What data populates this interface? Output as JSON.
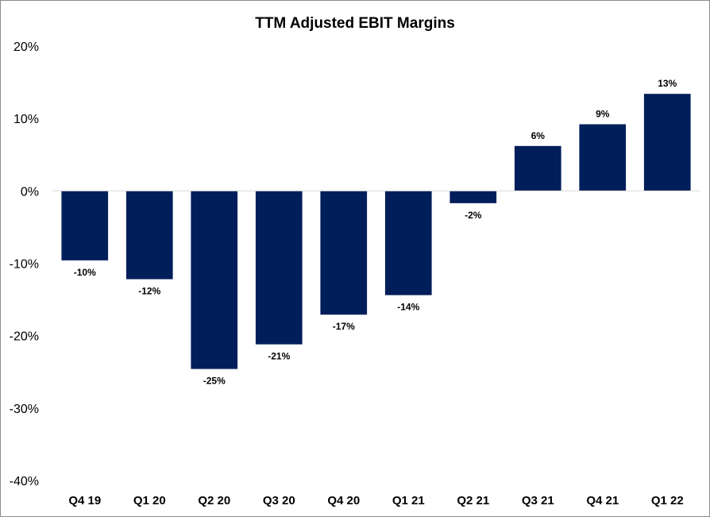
{
  "chart_data": {
    "type": "bar",
    "title": "TTM Adjusted EBIT Margins",
    "categories": [
      "Q4 19",
      "Q1 20",
      "Q2 20",
      "Q3 20",
      "Q4 20",
      "Q1 21",
      "Q2 21",
      "Q3 21",
      "Q4 21",
      "Q1 22"
    ],
    "values": [
      -9.6,
      -12.2,
      -24.6,
      -21.2,
      -17.1,
      -14.4,
      -1.7,
      6.2,
      9.2,
      13.4
    ],
    "data_labels": [
      "-10%",
      "-12%",
      "-25%",
      "-21%",
      "-17%",
      "-14%",
      "-2%",
      "6%",
      "9%",
      "13%"
    ],
    "y_ticks": [
      20,
      10,
      0,
      -10,
      -20,
      -30,
      -40
    ],
    "y_tick_labels": [
      "20%",
      "10%",
      "0%",
      "-10%",
      "-20%",
      "-30%",
      "-40%"
    ],
    "ylim": [
      -40,
      20
    ],
    "xlabel": "",
    "ylabel": "",
    "grid": false,
    "legend": "none",
    "bar_color": "#001E5A"
  }
}
